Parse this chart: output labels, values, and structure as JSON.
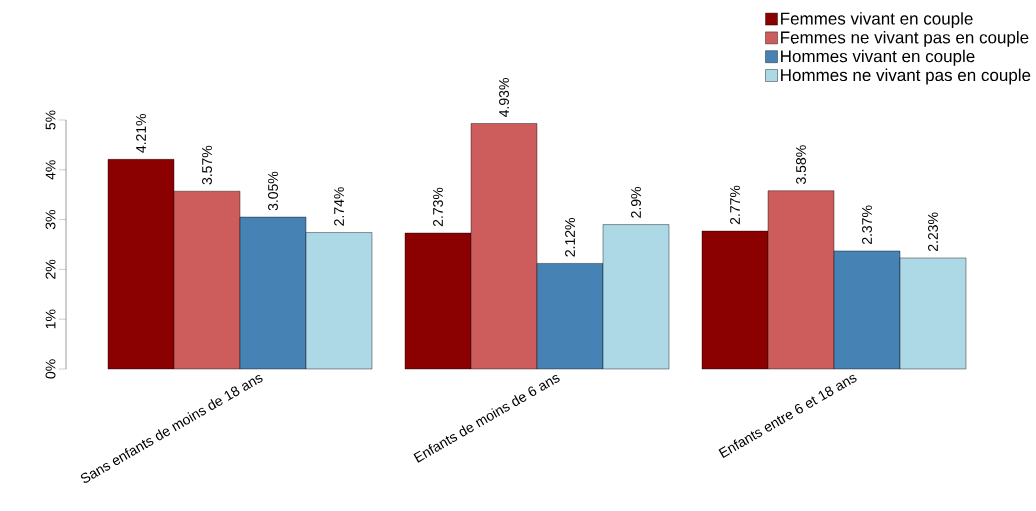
{
  "chart_data": {
    "type": "bar",
    "categories": [
      "Sans enfants de moins de 18 ans",
      "Enfants de moins de 6 ans",
      "Enfants entre 6 et 18 ans"
    ],
    "series": [
      {
        "name": "Femmes vivant en couple",
        "color": "#8b0000",
        "values": [
          4.21,
          2.73,
          2.77
        ],
        "value_labels": [
          "4.21%",
          "2.73%",
          "2.77%"
        ]
      },
      {
        "name": "Femmes ne vivant pas en couple",
        "color": "#cd5c5c",
        "values": [
          3.57,
          4.93,
          3.58
        ],
        "value_labels": [
          "3.57%",
          "4.93%",
          "3.58%"
        ]
      },
      {
        "name": "Hommes vivant en couple",
        "color": "#4682b4",
        "values": [
          3.05,
          2.12,
          2.37
        ],
        "value_labels": [
          "3.05%",
          "2.12%",
          "2.37%"
        ]
      },
      {
        "name": "Hommes ne vivant pas en couple",
        "color": "#add8e6",
        "values": [
          2.74,
          2.9,
          2.23
        ],
        "value_labels": [
          "2.74%",
          "2.9%",
          "2.23%"
        ]
      }
    ],
    "ylim": [
      0,
      5
    ],
    "yticks": [
      {
        "value": 0,
        "label": "0%"
      },
      {
        "value": 1,
        "label": "1%"
      },
      {
        "value": 2,
        "label": "2%"
      },
      {
        "value": 3,
        "label": "3%"
      },
      {
        "value": 4,
        "label": "4%"
      },
      {
        "value": 5,
        "label": "5%"
      }
    ],
    "legend": "top right"
  }
}
